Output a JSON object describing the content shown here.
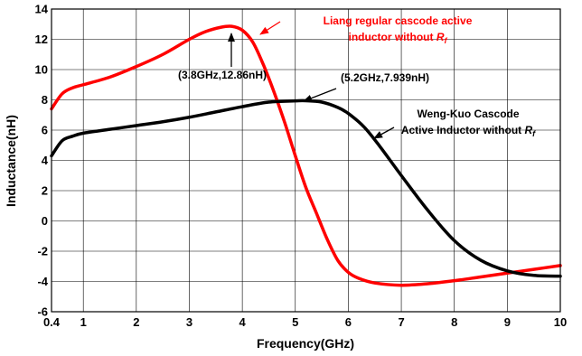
{
  "chart_data": {
    "type": "line",
    "xlabel": "Frequency(GHz)",
    "ylabel": "Inductance(nH)",
    "xlim": [
      0.4,
      10
    ],
    "ylim": [
      -6,
      14
    ],
    "grid": true,
    "xticks": [
      0.4,
      1,
      2,
      3,
      4,
      5,
      6,
      7,
      8,
      9,
      10
    ],
    "xtick_labels": [
      "0.4",
      "1",
      "2",
      "3",
      "4",
      "5",
      "6",
      "7",
      "8",
      "9",
      "10"
    ],
    "yticks": [
      -6,
      -4,
      -2,
      0,
      2,
      4,
      6,
      8,
      10,
      12,
      14
    ],
    "ytick_labels": [
      "-6",
      "-4",
      "-2",
      "0",
      "2",
      "4",
      "6",
      "8",
      "10",
      "12",
      "14"
    ],
    "series": [
      {
        "color": "#ff0000",
        "x": [
          0.4,
          0.6,
          0.8,
          1.0,
          1.5,
          2.0,
          2.5,
          3.0,
          3.3,
          3.6,
          3.8,
          4.0,
          4.2,
          4.4,
          4.6,
          4.8,
          5.0,
          5.2,
          5.4,
          5.6,
          5.8,
          6.0,
          6.2,
          6.5,
          7.0,
          7.5,
          8.0,
          8.5,
          9.0,
          9.5,
          10.0
        ],
        "y": [
          7.4,
          8.4,
          8.8,
          9.0,
          9.5,
          10.2,
          11.0,
          12.0,
          12.5,
          12.8,
          12.86,
          12.6,
          11.8,
          10.3,
          8.5,
          6.5,
          4.3,
          2.2,
          0.5,
          -1.2,
          -2.6,
          -3.4,
          -3.8,
          -4.1,
          -4.25,
          -4.15,
          -3.95,
          -3.7,
          -3.45,
          -3.2,
          -2.95
        ]
      },
      {
        "color": "#000000",
        "x": [
          0.4,
          0.6,
          0.8,
          1.0,
          1.5,
          2.0,
          2.5,
          3.0,
          3.5,
          4.0,
          4.5,
          5.0,
          5.2,
          5.5,
          5.8,
          6.0,
          6.3,
          6.6,
          7.0,
          7.5,
          8.0,
          8.5,
          9.0,
          9.5,
          10.0
        ],
        "y": [
          4.3,
          5.3,
          5.6,
          5.8,
          6.05,
          6.3,
          6.55,
          6.85,
          7.2,
          7.55,
          7.85,
          7.93,
          7.939,
          7.85,
          7.5,
          7.1,
          6.2,
          4.9,
          3.0,
          0.7,
          -1.3,
          -2.6,
          -3.3,
          -3.6,
          -3.65
        ]
      }
    ],
    "annotations": [
      {
        "id": "liang-line1",
        "text": "Liang regular cascode active",
        "color": "#ff0000"
      },
      {
        "id": "liang-line2",
        "text": "inductor without ",
        "sub": "R",
        "subscript": "f",
        "color": "#ff0000"
      },
      {
        "id": "weng-line1",
        "text": "Weng-Kuo Cascode",
        "color": "#000000"
      },
      {
        "id": "weng-line2",
        "text": "Active Inductor without ",
        "sub": "R",
        "subscript": "f",
        "color": "#000000"
      },
      {
        "id": "peak-red",
        "text": "(3.8GHz,12.86nH)",
        "color": "#000000"
      },
      {
        "id": "peak-black",
        "text": "(5.2GHz,7.939nH)",
        "color": "#000000"
      }
    ]
  }
}
